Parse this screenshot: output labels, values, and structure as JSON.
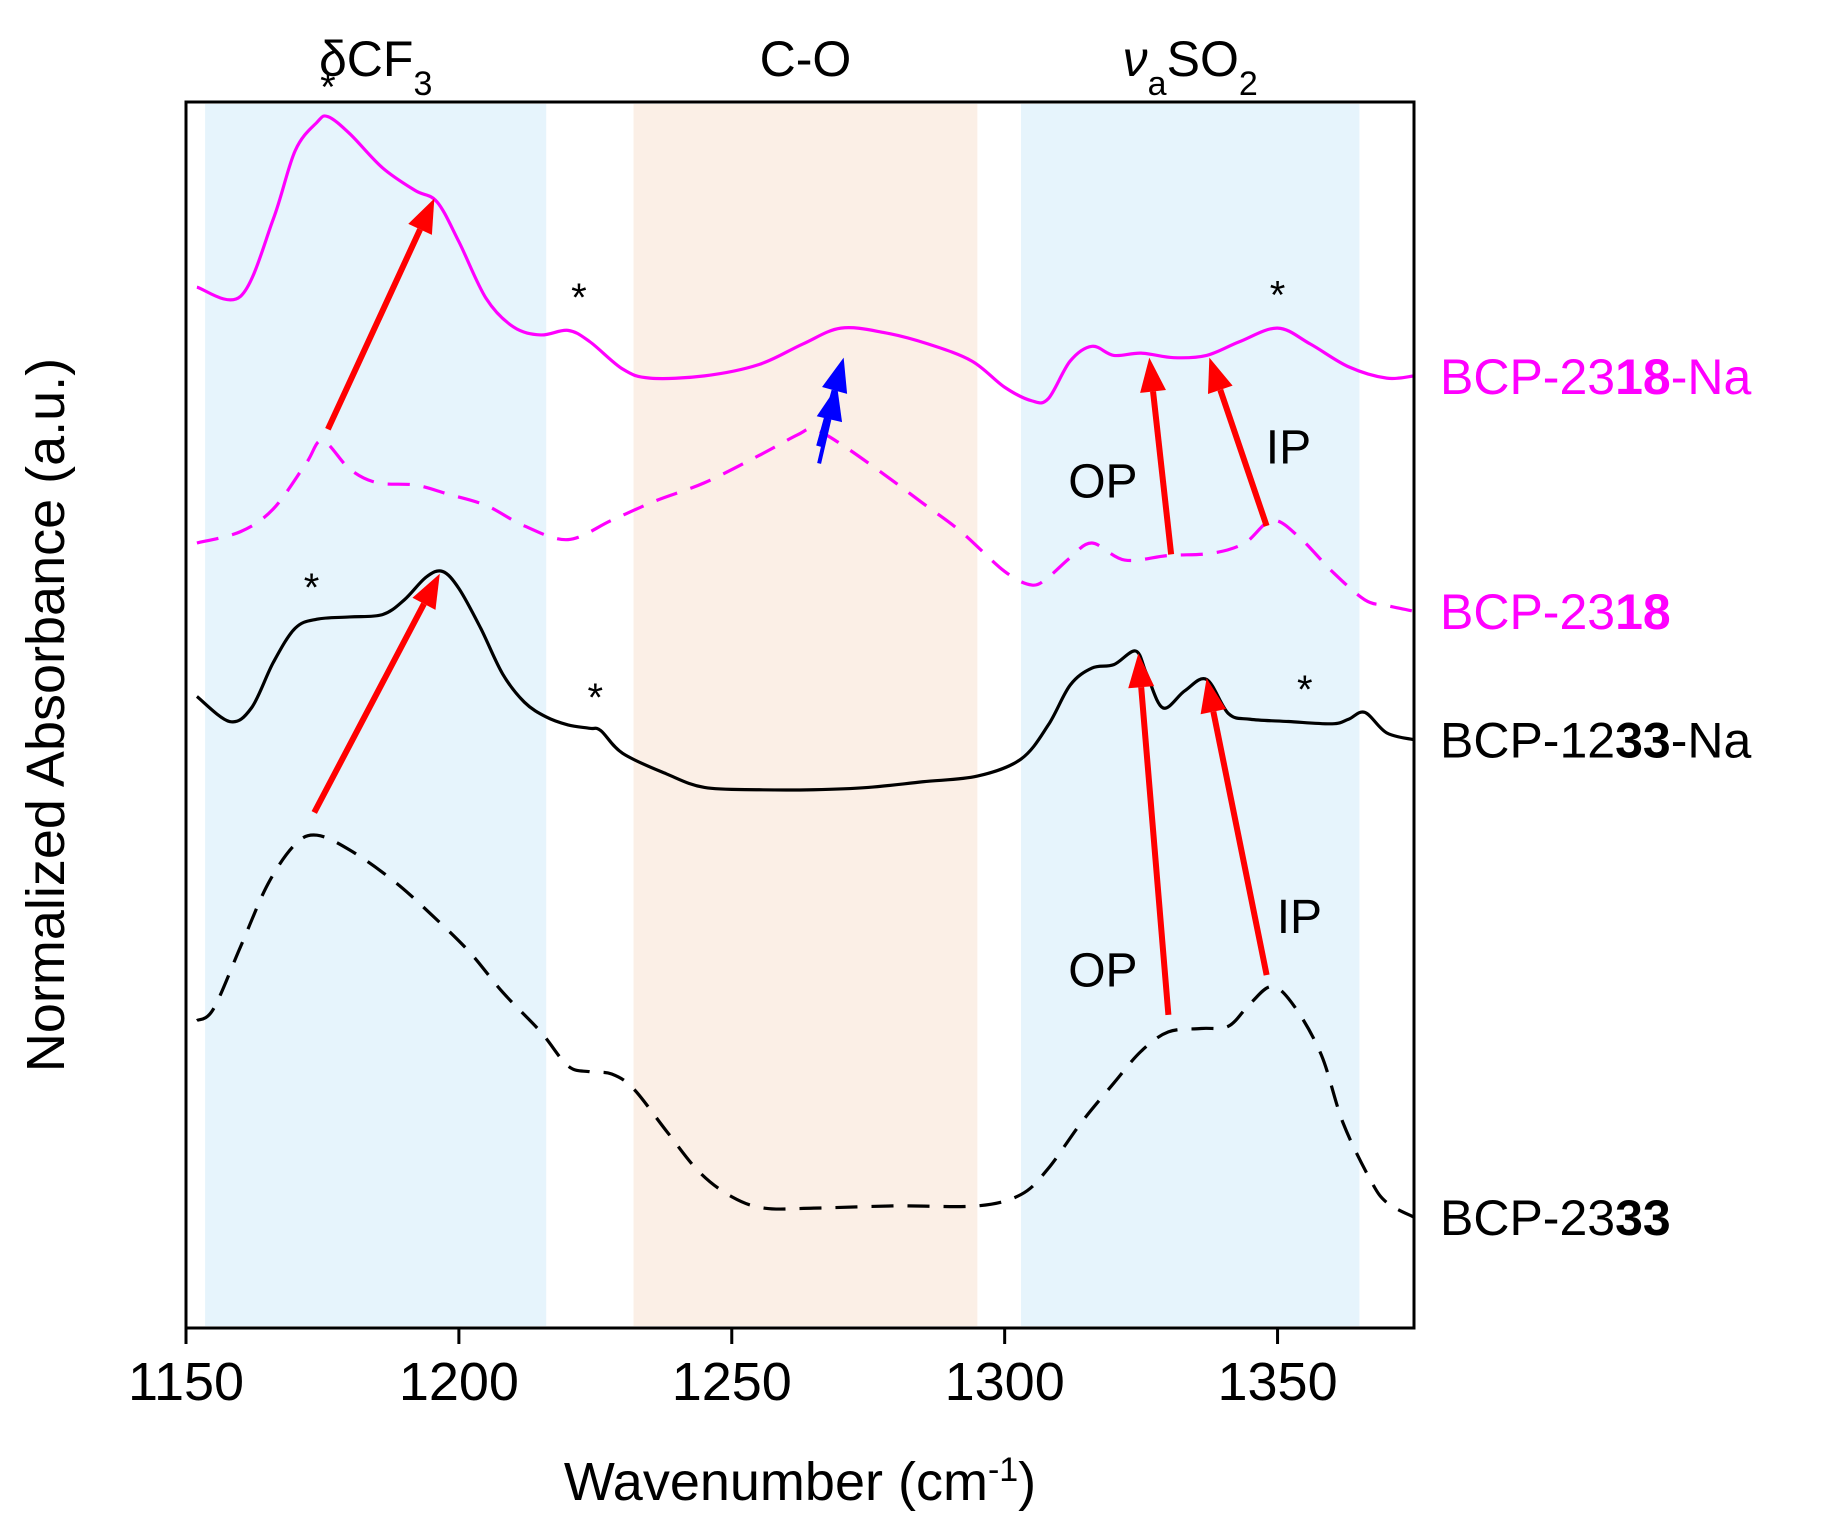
{
  "chart_data": {
    "type": "line",
    "xlabel": "Wavenumber (cm",
    "xlabel_sup": "-1",
    "xlabel_end": ")",
    "ylabel": "Normalized Absorbance (a.u.)",
    "xlim": [
      1150,
      1375
    ],
    "ylim": [
      0,
      10
    ],
    "xticks": [
      "1150",
      "1200",
      "1250",
      "1300",
      "1350"
    ],
    "colors": {
      "magenta": "#ff00ff",
      "black": "#000000",
      "red": "#ff0000",
      "blue": "#0000ff",
      "blueband": "#e6f4fc",
      "peachband": "#fbefe6"
    },
    "bands": [
      {
        "name": "dCF3",
        "x0": 1153.5,
        "x1": 1216,
        "color": "#e6f4fc",
        "label": "δCF",
        "sub": "3"
      },
      {
        "name": "CO",
        "x0": 1232,
        "x1": 1295,
        "color": "#fbefe6",
        "label": "C-O",
        "sub": ""
      },
      {
        "name": "SO2",
        "x0": 1303,
        "x1": 1365,
        "color": "#e6f4fc",
        "label": "ν",
        "sub": "a",
        "label2": "SO",
        "sub2": "2"
      }
    ],
    "series": [
      {
        "name": "BCP-2318-Na",
        "label_pre": "BCP-23",
        "label_bold": "18",
        "label_post": "-Na",
        "color": "#ff00ff",
        "dash": false,
        "x": [
          1152,
          1160,
          1166,
          1170,
          1174,
          1176,
          1180,
          1186,
          1192,
          1196,
          1200,
          1205,
          1210,
          1215,
          1220,
          1224,
          1230,
          1235,
          1245,
          1255,
          1263,
          1270,
          1278,
          1286,
          1294,
          1300,
          1305,
          1308,
          1312,
          1316,
          1320,
          1325,
          1331,
          1337,
          1343,
          1350,
          1356,
          1363,
          1370,
          1375
        ],
        "y": [
          8.6,
          8.52,
          9.2,
          9.8,
          10.05,
          10.1,
          9.95,
          9.65,
          9.45,
          9.35,
          9.0,
          8.5,
          8.25,
          8.18,
          8.22,
          8.12,
          7.88,
          7.8,
          7.82,
          7.92,
          8.1,
          8.24,
          8.2,
          8.1,
          7.95,
          7.72,
          7.6,
          7.62,
          7.95,
          8.08,
          8.0,
          8.02,
          7.98,
          8.0,
          8.12,
          8.24,
          8.1,
          7.9,
          7.8,
          7.82
        ]
      },
      {
        "name": "BCP-2318",
        "label_pre": "BCP-23",
        "label_bold": "18",
        "label_post": "",
        "color": "#ff00ff",
        "dash": true,
        "x": [
          1152,
          1160,
          1166,
          1172,
          1175,
          1180,
          1185,
          1192,
          1198,
          1205,
          1212,
          1220,
          1228,
          1236,
          1245,
          1255,
          1262,
          1265,
          1270,
          1278,
          1285,
          1292,
          1300,
          1305,
          1308,
          1312,
          1316,
          1322,
          1330,
          1338,
          1344,
          1349,
          1354,
          1360,
          1366,
          1370,
          1375
        ],
        "y": [
          6.35,
          6.45,
          6.65,
          7.05,
          7.25,
          7.0,
          6.88,
          6.86,
          6.78,
          6.68,
          6.5,
          6.38,
          6.55,
          6.72,
          6.88,
          7.12,
          7.3,
          7.35,
          7.22,
          6.95,
          6.7,
          6.45,
          6.1,
          5.98,
          6.05,
          6.22,
          6.35,
          6.2,
          6.24,
          6.26,
          6.35,
          6.55,
          6.4,
          6.1,
          5.85,
          5.8,
          5.75
        ]
      },
      {
        "name": "BCP-1233-Na",
        "label_pre": "BCP-12",
        "label_bold": "33",
        "label_post": "-Na",
        "color": "#000000",
        "dash": false,
        "x": [
          1152,
          1158,
          1162,
          1166,
          1170,
          1174,
          1180,
          1186,
          1190,
          1194,
          1197,
          1200,
          1204,
          1208,
          1212,
          1216,
          1220,
          1224,
          1226,
          1230,
          1238,
          1245,
          1255,
          1265,
          1275,
          1285,
          1295,
          1303,
          1308,
          1312,
          1316,
          1320,
          1324,
          1326,
          1329,
          1333,
          1337,
          1341,
          1345,
          1352,
          1360,
          1363,
          1366,
          1370,
          1375
        ],
        "y": [
          5.0,
          4.78,
          4.9,
          5.3,
          5.6,
          5.68,
          5.7,
          5.72,
          5.85,
          6.05,
          6.1,
          5.95,
          5.6,
          5.2,
          4.95,
          4.82,
          4.75,
          4.72,
          4.7,
          4.5,
          4.32,
          4.2,
          4.18,
          4.18,
          4.2,
          4.25,
          4.3,
          4.45,
          4.75,
          5.1,
          5.25,
          5.28,
          5.4,
          5.2,
          4.9,
          5.05,
          5.15,
          4.85,
          4.8,
          4.78,
          4.76,
          4.8,
          4.86,
          4.68,
          4.62
        ]
      },
      {
        "name": "BCP-2333",
        "label_pre": "BCP-23",
        "label_bold": "33",
        "label_post": "",
        "color": "#000000",
        "dash": true,
        "x": [
          1152,
          1155,
          1160,
          1165,
          1170,
          1174,
          1180,
          1188,
          1195,
          1202,
          1208,
          1215,
          1220,
          1224,
          1228,
          1232,
          1238,
          1244,
          1250,
          1256,
          1265,
          1280,
          1295,
          1303,
          1308,
          1314,
          1320,
          1325,
          1330,
          1336,
          1341,
          1345,
          1349,
          1353,
          1358,
          1362,
          1367,
          1370,
          1375
        ],
        "y": [
          2.15,
          2.25,
          2.8,
          3.35,
          3.7,
          3.78,
          3.65,
          3.38,
          3.08,
          2.75,
          2.4,
          2.05,
          1.75,
          1.7,
          1.68,
          1.55,
          1.18,
          0.82,
          0.6,
          0.5,
          0.5,
          0.52,
          0.52,
          0.62,
          0.85,
          1.25,
          1.6,
          1.88,
          2.05,
          2.08,
          2.1,
          2.3,
          2.45,
          2.28,
          1.85,
          1.25,
          0.75,
          0.55,
          0.42
        ]
      }
    ],
    "stars": [
      {
        "x": 1176,
        "y": 10.1
      },
      {
        "x": 1222,
        "y": 8.25
      },
      {
        "x": 1350,
        "y": 8.27
      },
      {
        "x": 1173,
        "y": 5.7
      },
      {
        "x": 1225,
        "y": 4.73
      },
      {
        "x": 1355,
        "y": 4.8
      }
    ],
    "arrows": [
      {
        "color": "#ff00ff",
        "role": "placeholder",
        "x0": 0,
        "y0": 0,
        "x1": 0,
        "y1": 0
      }
    ],
    "red_arrows": [
      {
        "x0": 1176,
        "y0": 7.35,
        "x1": 1195.5,
        "y1": 9.38
      },
      {
        "x0": 1330.5,
        "y0": 6.25,
        "x1": 1326.5,
        "y1": 7.98
      },
      {
        "x0": 1348,
        "y0": 6.5,
        "x1": 1337.5,
        "y1": 7.98
      },
      {
        "x0": 1173.5,
        "y0": 3.98,
        "x1": 1196.5,
        "y1": 6.08
      },
      {
        "x0": 1330,
        "y0": 2.2,
        "x1": 1324.5,
        "y1": 5.38
      },
      {
        "x0": 1348,
        "y0": 2.55,
        "x1": 1337,
        "y1": 5.16
      }
    ],
    "blue_arrows": [
      {
        "x0": 1266,
        "y0": 7.2,
        "x1": 1270.5,
        "y1": 7.98
      }
    ],
    "annotations": [
      {
        "text": "OP",
        "x": 1318,
        "y": 6.75
      },
      {
        "text": "IP",
        "x": 1352,
        "y": 7.05
      },
      {
        "text": "OP",
        "x": 1318,
        "y": 2.45
      },
      {
        "text": "IP",
        "x": 1354,
        "y": 2.92
      }
    ]
  }
}
